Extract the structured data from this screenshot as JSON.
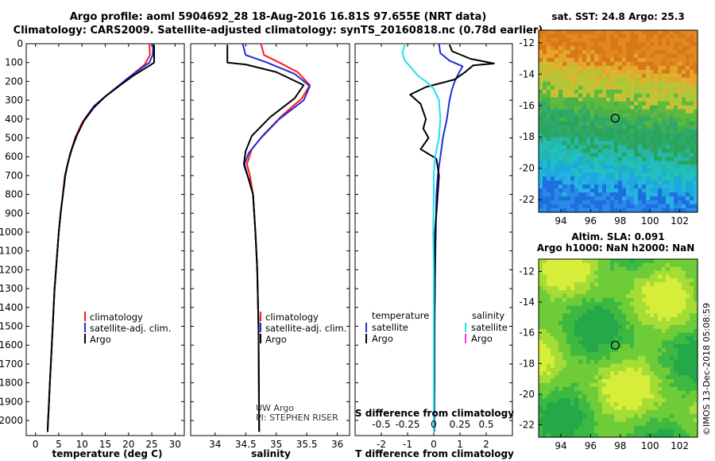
{
  "header": {
    "title_line1": "Argo profile: aoml 5904692_28 18-Aug-2016 16.81S 97.655E (NRT data)",
    "title_line2": "Climatology: CARS2009. Satellite-adjusted climatology: synTS_20160818.nc (0.78d earlier)"
  },
  "colors": {
    "climatology": "#ff1a1a",
    "satellite": "#1f2fd6",
    "argo": "#000000",
    "sat_salinity": "#22e0ee",
    "argo_salinity": "#ff33cc"
  },
  "chart_data": [
    {
      "type": "line",
      "name": "temperature-profile",
      "xlabel": "temperature (deg C)",
      "ylabel": "",
      "xlim": [
        -2,
        32
      ],
      "ylim": [
        2080,
        0
      ],
      "xticks": [
        0,
        5,
        10,
        15,
        20,
        25,
        30
      ],
      "yticks": [
        0,
        100,
        200,
        300,
        400,
        500,
        600,
        700,
        800,
        900,
        1000,
        1100,
        1200,
        1300,
        1400,
        1500,
        1600,
        1700,
        1800,
        1900,
        2000
      ],
      "legend": [
        "climatology",
        "satellite-adj. clim.",
        "Argo"
      ],
      "legend_position": "lower-right",
      "series": [
        {
          "name": "climatology",
          "points": [
            [
              24.5,
              0
            ],
            [
              24.6,
              60
            ],
            [
              23.5,
              110
            ],
            [
              19,
              200
            ],
            [
              15,
              280
            ],
            [
              12,
              350
            ],
            [
              10,
              420
            ],
            [
              8.5,
              500
            ],
            [
              7.5,
              580
            ],
            [
              6.8,
              650
            ],
            [
              6.3,
              700
            ],
            [
              5.9,
              800
            ],
            [
              5.4,
              900
            ],
            [
              5,
              1000
            ],
            [
              4.7,
              1100
            ],
            [
              4.4,
              1200
            ],
            [
              4.1,
              1300
            ],
            [
              3.9,
              1400
            ],
            [
              3.7,
              1500
            ],
            [
              3.5,
              1600
            ],
            [
              3.3,
              1700
            ],
            [
              3.1,
              1800
            ],
            [
              2.9,
              1900
            ],
            [
              2.7,
              2000
            ],
            [
              2.6,
              2060
            ]
          ]
        },
        {
          "name": "satellite-adj. clim.",
          "points": [
            [
              25.3,
              0
            ],
            [
              25.2,
              60
            ],
            [
              24.5,
              100
            ],
            [
              20,
              180
            ],
            [
              16,
              260
            ],
            [
              12.6,
              330
            ],
            [
              10.6,
              400
            ],
            [
              9,
              480
            ],
            [
              7.8,
              560
            ],
            [
              6.9,
              640
            ],
            [
              6.4,
              700
            ],
            [
              5.9,
              800
            ],
            [
              5.4,
              900
            ],
            [
              5,
              1000
            ],
            [
              4.7,
              1100
            ],
            [
              4.4,
              1200
            ],
            [
              4.1,
              1300
            ],
            [
              3.9,
              1400
            ],
            [
              3.7,
              1500
            ],
            [
              3.5,
              1600
            ],
            [
              3.3,
              1700
            ],
            [
              3.1,
              1800
            ],
            [
              2.9,
              1900
            ],
            [
              2.7,
              2000
            ],
            [
              2.6,
              2060
            ]
          ]
        },
        {
          "name": "Argo",
          "points": [
            [
              25.5,
              5
            ],
            [
              25.5,
              100
            ],
            [
              24.6,
              115
            ],
            [
              21,
              170
            ],
            [
              18.5,
              215
            ],
            [
              15,
              280
            ],
            [
              12.5,
              340
            ],
            [
              10.4,
              410
            ],
            [
              8.8,
              490
            ],
            [
              7.5,
              580
            ],
            [
              6.8,
              650
            ],
            [
              6.4,
              700
            ],
            [
              5.9,
              800
            ],
            [
              5.4,
              900
            ],
            [
              5,
              1000
            ],
            [
              4.7,
              1100
            ],
            [
              4.4,
              1200
            ],
            [
              4.1,
              1300
            ],
            [
              3.9,
              1400
            ],
            [
              3.7,
              1500
            ],
            [
              3.5,
              1600
            ],
            [
              3.3,
              1700
            ],
            [
              3.1,
              1800
            ],
            [
              2.9,
              1900
            ],
            [
              2.7,
              2000
            ],
            [
              2.6,
              2060
            ]
          ]
        }
      ]
    },
    {
      "type": "line",
      "name": "salinity-profile",
      "xlabel": "salinity",
      "xlim": [
        33.6,
        36.2
      ],
      "ylim": [
        2080,
        0
      ],
      "xticks": [
        34,
        34.5,
        35,
        35.5,
        36
      ],
      "xticklabels": [
        "34",
        "34.5",
        "35",
        "35.5",
        "36"
      ],
      "legend": [
        "climatology",
        "satellite-adj. clim.",
        "Argo"
      ],
      "legend_position": "lower-right",
      "annotations": [
        "UW Argo",
        "PI: STEPHEN RISER"
      ],
      "series": [
        {
          "name": "climatology",
          "points": [
            [
              34.75,
              0
            ],
            [
              34.8,
              60
            ],
            [
              35.05,
              100
            ],
            [
              35.35,
              150
            ],
            [
              35.55,
              220
            ],
            [
              35.42,
              290
            ],
            [
              35.1,
              380
            ],
            [
              34.8,
              480
            ],
            [
              34.6,
              560
            ],
            [
              34.52,
              640
            ],
            [
              34.57,
              700
            ],
            [
              34.62,
              800
            ],
            [
              34.66,
              1000
            ],
            [
              34.69,
              1200
            ],
            [
              34.71,
              1500
            ],
            [
              34.72,
              2060
            ]
          ]
        },
        {
          "name": "satellite-adj. clim.",
          "points": [
            [
              34.45,
              0
            ],
            [
              34.5,
              60
            ],
            [
              34.85,
              100
            ],
            [
              35.3,
              160
            ],
            [
              35.55,
              225
            ],
            [
              35.45,
              300
            ],
            [
              35.05,
              400
            ],
            [
              34.75,
              500
            ],
            [
              34.55,
              580
            ],
            [
              34.48,
              640
            ],
            [
              34.55,
              720
            ],
            [
              34.62,
              800
            ],
            [
              34.66,
              1000
            ],
            [
              34.69,
              1200
            ],
            [
              34.71,
              1500
            ],
            [
              34.72,
              2060
            ]
          ]
        },
        {
          "name": "Argo",
          "points": [
            [
              34.2,
              5
            ],
            [
              34.2,
              100
            ],
            [
              34.5,
              110
            ],
            [
              35.0,
              150
            ],
            [
              35.45,
              220
            ],
            [
              35.3,
              290
            ],
            [
              34.9,
              390
            ],
            [
              34.6,
              490
            ],
            [
              34.5,
              570
            ],
            [
              34.47,
              640
            ],
            [
              34.55,
              720
            ],
            [
              34.62,
              800
            ],
            [
              34.66,
              1000
            ],
            [
              34.69,
              1200
            ],
            [
              34.71,
              1500
            ],
            [
              34.72,
              2060
            ]
          ]
        }
      ]
    },
    {
      "type": "line",
      "name": "difference-profile",
      "xlabel": "T difference from climatology",
      "xlim": [
        -3,
        3
      ],
      "ylim": [
        2080,
        0
      ],
      "xticks": [
        -2,
        -1,
        0,
        1,
        2
      ],
      "xticklabels": [
        "-2",
        "-1",
        "0",
        "1",
        "2"
      ],
      "secondary_xlabel": "S difference from climatology",
      "secondary_xticks": [
        -0.5,
        -0.25,
        0,
        0.25,
        0.5
      ],
      "secondary_xticklabels": [
        "-0.5",
        "-0.25",
        "0",
        "0.25",
        "0.5"
      ],
      "legend_temperature": {
        "title": "temperature",
        "items": [
          "satellite",
          "Argo"
        ]
      },
      "legend_salinity": {
        "title": "salinity",
        "items": [
          "satellite",
          "Argo"
        ]
      },
      "series": [
        {
          "name": "temperature satellite",
          "points": [
            [
              0.2,
              0
            ],
            [
              0.25,
              50
            ],
            [
              0.6,
              90
            ],
            [
              1.1,
              120
            ],
            [
              0.9,
              170
            ],
            [
              0.8,
              200
            ],
            [
              0.7,
              240
            ],
            [
              0.6,
              300
            ],
            [
              0.5,
              400
            ],
            [
              0.35,
              500
            ],
            [
              0.25,
              600
            ],
            [
              0.15,
              700
            ],
            [
              0.1,
              800
            ],
            [
              0.08,
              1000
            ],
            [
              0.05,
              1200
            ],
            [
              0.03,
              1500
            ],
            [
              0.02,
              2060
            ]
          ]
        },
        {
          "name": "temperature Argo",
          "points": [
            [
              0.6,
              5
            ],
            [
              0.7,
              40
            ],
            [
              1.4,
              80
            ],
            [
              2.3,
              105
            ],
            [
              1.5,
              115
            ],
            [
              1.2,
              150
            ],
            [
              0.8,
              190
            ],
            [
              -0.3,
              230
            ],
            [
              -0.9,
              270
            ],
            [
              -0.5,
              320
            ],
            [
              -0.3,
              400
            ],
            [
              -0.4,
              450
            ],
            [
              -0.2,
              500
            ],
            [
              -0.5,
              560
            ],
            [
              0.1,
              610
            ],
            [
              0.2,
              700
            ],
            [
              0.15,
              800
            ],
            [
              0.1,
              900
            ],
            [
              0.05,
              1000
            ],
            [
              0.05,
              1200
            ],
            [
              0.02,
              1500
            ],
            [
              0.02,
              1800
            ],
            [
              0.01,
              2060
            ]
          ]
        },
        {
          "name": "salinity satellite",
          "points": [
            [
              -1.1,
              0
            ],
            [
              -1.2,
              50
            ],
            [
              -1.1,
              90
            ],
            [
              -0.6,
              170
            ],
            [
              -0.3,
              200
            ],
            [
              0.0,
              240
            ],
            [
              0.2,
              300
            ],
            [
              0.25,
              400
            ],
            [
              0.2,
              500
            ],
            [
              0.05,
              600
            ],
            [
              0.0,
              700
            ],
            [
              0.0,
              800
            ],
            [
              -0.02,
              1000
            ],
            [
              0.0,
              1200
            ],
            [
              0.0,
              1500
            ],
            [
              0.0,
              2060
            ]
          ]
        }
      ]
    }
  ],
  "maps": {
    "sst": {
      "title": "sat. SST: 24.8 Argo: 25.3",
      "xticks": [
        "94",
        "96",
        "98",
        "100",
        "102"
      ],
      "yticks": [
        "-12",
        "-14",
        "-16",
        "-18",
        "-20",
        "-22"
      ],
      "xlim": [
        92.5,
        103.2
      ],
      "ylim": [
        -22.8,
        -11.2
      ],
      "marker": [
        97.655,
        -16.81
      ]
    },
    "sla": {
      "title_line1": "Altim. SLA: 0.091",
      "title_line2": "Argo h1000: NaN h2000: NaN",
      "xticks": [
        "94",
        "96",
        "98",
        "100",
        "102"
      ],
      "yticks": [
        "-12",
        "-14",
        "-16",
        "-18",
        "-20",
        "-22"
      ],
      "xlim": [
        92.5,
        103.2
      ],
      "ylim": [
        -22.8,
        -11.2
      ],
      "marker": [
        97.655,
        -16.81
      ]
    }
  },
  "footer": {
    "stamp": "©IMOS 13-Dec-2018 05:08:59"
  }
}
